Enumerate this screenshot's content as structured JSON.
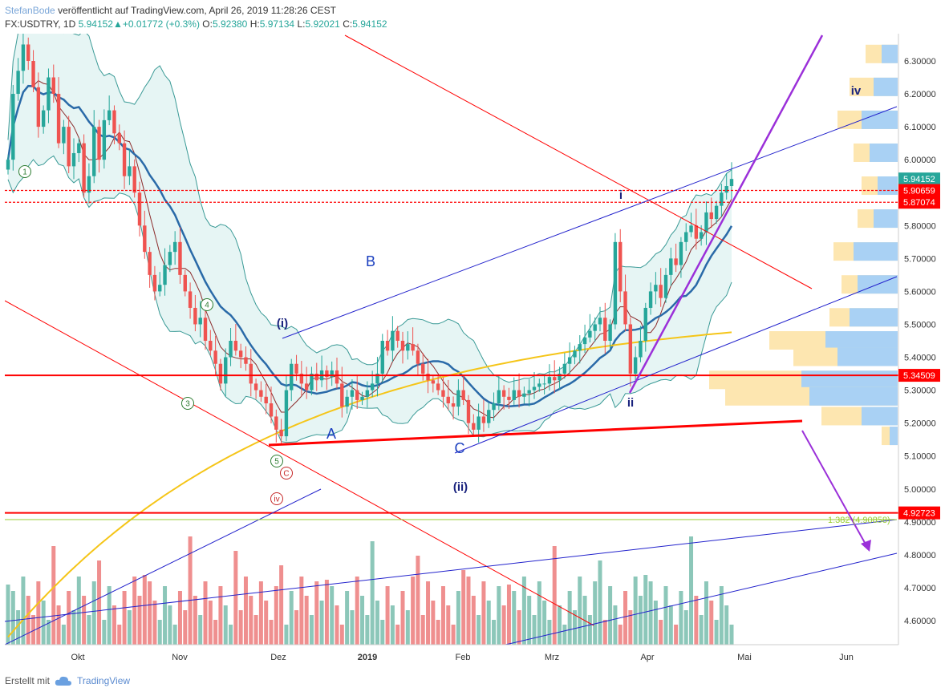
{
  "header": {
    "author": "StefanBode",
    "published": "veröffentlicht auf TradingView.com, April 26, 2019 11:28:26 CEST",
    "symbol": "FX:USDTRY, 1D",
    "last": "5.94152",
    "change": "+0.01772 (+0.3%)",
    "open_label": "O:",
    "open": "5.92380",
    "high_label": "H:",
    "high": "5.97134",
    "low_label": "L:",
    "low": "5.92021",
    "close_label": "C:",
    "close": "5.94152"
  },
  "footer": {
    "created_with": "Erstellt mit",
    "brand": "TradingView"
  },
  "chart_data": {
    "type": "candlestick",
    "title": "FX:USDTRY, 1D",
    "ylim": [
      4.52,
      6.38
    ],
    "y_ticks": [
      "6.30000",
      "6.20000",
      "6.10000",
      "6.00000",
      "5.90000",
      "5.80000",
      "5.70000",
      "5.60000",
      "5.50000",
      "5.40000",
      "5.30000",
      "5.20000",
      "5.10000",
      "5.00000",
      "4.90000",
      "4.80000",
      "4.70000",
      "4.60000"
    ],
    "x_ticks": [
      "Okt",
      "Nov",
      "Dez",
      "2019",
      "Feb",
      "Mrz",
      "Apr",
      "Mai",
      "Jun"
    ],
    "price_labels": [
      {
        "text": "5.94152",
        "value": 5.94152,
        "color": "#26a69a"
      },
      {
        "text": "5.90659",
        "value": 5.90659,
        "color": "#ff0000"
      },
      {
        "text": "5.87074",
        "value": 5.87074,
        "color": "#ff0000"
      },
      {
        "text": "5.34509",
        "value": 5.34509,
        "color": "#ff0000"
      },
      {
        "text": "4.92723",
        "value": 4.92723,
        "color": "#ff0000"
      }
    ],
    "horizontal_levels": [
      {
        "value": 5.90659,
        "color": "#ff0000",
        "style": "dashed"
      },
      {
        "value": 5.87074,
        "color": "#ff0000",
        "style": "dashed"
      },
      {
        "value": 5.34509,
        "color": "#ff0000",
        "style": "solid"
      },
      {
        "value": 4.92723,
        "color": "#ff0000",
        "style": "solid"
      }
    ],
    "fib_label": "1.382 (4.90858)",
    "colors": {
      "up": "#26a69a",
      "down": "#ef5350",
      "bb_fill": "#e0f3f1",
      "ma_blue": "#2a6aa8",
      "ma_yellow": "#f5c518",
      "ma_dark": "#8b2a2a",
      "trend_red": "#ff0000",
      "channel_blue": "#2222cc",
      "purple": "#9b30d9"
    },
    "wave_labels": [
      {
        "text": "1",
        "style": "circle-green"
      },
      {
        "text": "3",
        "style": "circle-green"
      },
      {
        "text": "4",
        "style": "circle-green"
      },
      {
        "text": "5",
        "style": "circle-green"
      },
      {
        "text": "C",
        "style": "circle-red"
      },
      {
        "text": "iv",
        "style": "circle-red"
      },
      {
        "text": "(i)",
        "style": "navy"
      },
      {
        "text": "A",
        "style": "blue"
      },
      {
        "text": "B",
        "style": "blue"
      },
      {
        "text": "C",
        "style": "blue"
      },
      {
        "text": "(ii)",
        "style": "navy"
      },
      {
        "text": "i",
        "style": "navy"
      },
      {
        "text": "ii",
        "style": "navy"
      },
      {
        "text": "iv",
        "style": "navy"
      }
    ],
    "series": [
      {
        "type": "candles",
        "values": [
          6.0,
          6.2,
          6.27,
          6.35,
          6.3,
          6.22,
          6.1,
          6.15,
          6.25,
          6.2,
          6.05,
          6.1,
          5.98,
          6.02,
          6.05,
          5.9,
          5.95,
          6.1,
          6.0,
          6.12,
          6.15,
          6.08,
          6.05,
          5.95,
          5.98,
          5.9,
          5.8,
          5.72,
          5.65,
          5.6,
          5.62,
          5.68,
          5.72,
          5.75,
          5.65,
          5.6,
          5.55,
          5.5,
          5.52,
          5.45,
          5.42,
          5.38,
          5.32,
          5.4,
          5.45,
          5.42,
          5.4,
          5.38,
          5.32,
          5.3,
          5.28,
          5.26,
          5.22,
          5.18,
          5.16,
          5.3,
          5.38,
          5.35,
          5.32,
          5.3,
          5.35,
          5.33,
          5.36,
          5.34,
          5.36,
          5.32,
          5.25,
          5.28,
          5.3,
          5.27,
          5.28,
          5.3,
          5.32,
          5.35,
          5.45,
          5.42,
          5.48,
          5.45,
          5.42,
          5.44,
          5.42,
          5.38,
          5.35,
          5.33,
          5.32,
          5.3,
          5.28,
          5.26,
          5.25,
          5.3,
          5.27,
          5.2,
          5.18,
          5.22,
          5.2,
          5.24,
          5.26,
          5.3,
          5.28,
          5.27,
          5.3,
          5.28,
          5.29,
          5.3,
          5.31,
          5.32,
          5.32,
          5.34,
          5.33,
          5.35,
          5.38,
          5.4,
          5.42,
          5.44,
          5.46,
          5.48,
          5.5,
          5.52,
          5.45,
          5.5,
          5.75,
          5.6,
          5.5,
          5.35,
          5.4,
          5.45,
          5.55,
          5.6,
          5.62,
          5.58,
          5.65,
          5.7,
          5.68,
          5.75,
          5.78,
          5.8,
          5.76,
          5.78,
          5.84,
          5.82,
          5.86,
          5.9,
          5.92,
          5.94152
        ]
      },
      {
        "type": "volume_note",
        "values": []
      }
    ]
  }
}
